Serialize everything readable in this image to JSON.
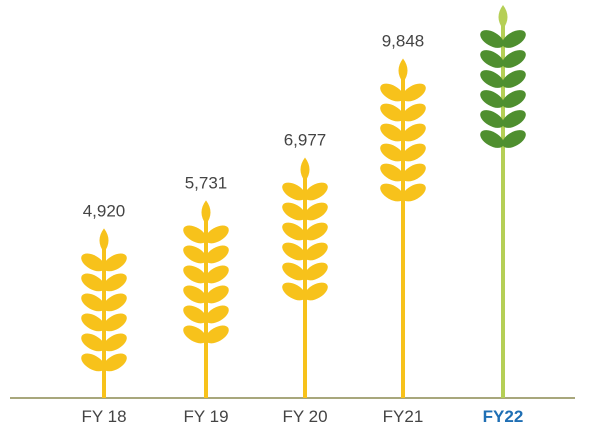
{
  "chart_data": {
    "type": "pictorial-bar",
    "categories": [
      "FY 18",
      "FY 19",
      "FY 20",
      "FY21",
      "FY22"
    ],
    "values": [
      4920,
      5731,
      6977,
      9848,
      11400
    ],
    "value_labels": [
      "4,920",
      "5,731",
      "6,977",
      "9,848",
      null
    ],
    "colors": [
      "#f7c21b",
      "#f7c21b",
      "#f7c21b",
      "#f7c21b",
      "#4f8f2f"
    ],
    "stem_colors": [
      "#f7c21b",
      "#f7c21b",
      "#f7c21b",
      "#f7c21b",
      "#b5cf56"
    ],
    "highlight_index": 4,
    "highlight_color": "#1f6fb4"
  }
}
